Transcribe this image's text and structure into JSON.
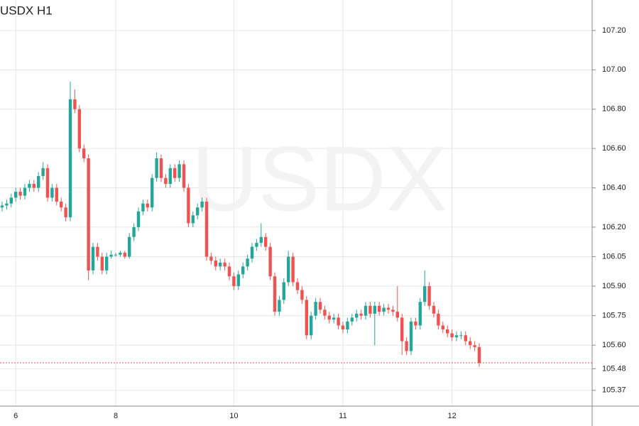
{
  "chart_data": {
    "type": "candlestick",
    "title": "USDX H1",
    "watermark": "USDX",
    "categories": [
      null,
      null,
      null,
      "6",
      null,
      null,
      null,
      null,
      null,
      null,
      null,
      null,
      null,
      null,
      null,
      null,
      null,
      null,
      null,
      null,
      null,
      null,
      null,
      null,
      null,
      "8",
      null,
      null,
      null,
      null,
      null,
      null,
      null,
      null,
      null,
      null,
      null,
      null,
      null,
      null,
      null,
      null,
      null,
      null,
      null,
      null,
      null,
      null,
      null,
      null,
      null,
      "10",
      null,
      null,
      null,
      null,
      null,
      null,
      null,
      null,
      null,
      null,
      null,
      null,
      null,
      null,
      null,
      null,
      null,
      null,
      null,
      null,
      null,
      null,
      null,
      "11",
      null,
      null,
      null,
      null,
      null,
      null,
      null,
      null,
      null,
      null,
      null,
      null,
      null,
      null,
      null,
      null,
      null,
      null,
      null,
      null,
      null,
      null,
      null,
      "12",
      null,
      null,
      null,
      null,
      null,
      null
    ],
    "open": [
      106.3,
      106.31,
      106.32,
      106.35,
      106.38,
      106.36,
      106.4,
      106.42,
      106.4,
      106.46,
      106.5,
      106.35,
      106.4,
      106.33,
      106.3,
      106.25,
      106.85,
      106.8,
      106.6,
      106.55,
      105.98,
      106.1,
      106.05,
      105.98,
      106.05,
      106.06,
      106.06,
      106.07,
      106.05,
      106.15,
      106.2,
      106.28,
      106.32,
      106.3,
      106.45,
      106.55,
      106.45,
      106.42,
      106.5,
      106.45,
      106.52,
      106.4,
      106.22,
      106.26,
      106.3,
      106.33,
      106.05,
      106.03,
      106.0,
      106.02,
      106.0,
      105.95,
      105.9,
      105.96,
      106.0,
      106.04,
      106.1,
      106.12,
      106.15,
      106.1,
      105.95,
      105.77,
      105.83,
      105.92,
      106.05,
      105.92,
      105.88,
      105.83,
      105.65,
      105.75,
      105.82,
      105.78,
      105.75,
      105.73,
      105.74,
      105.7,
      105.68,
      105.72,
      105.74,
      105.76,
      105.75,
      105.8,
      105.76,
      105.8,
      105.77,
      105.79,
      105.78,
      105.77,
      105.74,
      105.62,
      105.57,
      105.72,
      105.7,
      105.82,
      105.9,
      105.8,
      105.76,
      105.7,
      105.68,
      105.66,
      105.64,
      105.65,
      105.65,
      105.62,
      105.6,
      105.59
    ],
    "high": [
      106.33,
      106.34,
      106.37,
      106.4,
      106.4,
      106.42,
      106.44,
      106.44,
      106.48,
      106.53,
      106.52,
      106.42,
      106.42,
      106.35,
      106.32,
      106.94,
      106.9,
      106.82,
      106.62,
      106.57,
      106.12,
      106.12,
      106.07,
      106.07,
      106.08,
      106.07,
      106.08,
      106.08,
      106.17,
      106.22,
      106.3,
      106.34,
      106.34,
      106.47,
      106.58,
      106.57,
      106.47,
      106.52,
      106.52,
      106.54,
      106.54,
      106.42,
      106.28,
      106.32,
      106.35,
      106.35,
      106.07,
      106.05,
      106.04,
      106.04,
      106.02,
      105.97,
      105.98,
      106.02,
      106.06,
      106.12,
      106.14,
      106.22,
      106.17,
      106.12,
      105.97,
      105.85,
      105.94,
      106.08,
      106.07,
      105.94,
      105.9,
      105.85,
      105.77,
      105.84,
      105.84,
      105.8,
      105.77,
      105.76,
      105.76,
      105.72,
      105.74,
      105.76,
      105.78,
      105.78,
      105.82,
      105.82,
      105.82,
      105.82,
      105.81,
      105.81,
      105.8,
      105.9,
      105.76,
      105.64,
      105.74,
      105.74,
      105.84,
      105.98,
      105.92,
      105.82,
      105.78,
      105.72,
      105.7,
      105.68,
      105.67,
      105.67,
      105.67,
      105.64,
      105.62,
      105.61
    ],
    "low": [
      106.28,
      106.29,
      106.3,
      106.33,
      106.34,
      106.34,
      106.38,
      106.38,
      106.38,
      106.44,
      106.33,
      106.33,
      106.31,
      106.28,
      106.23,
      106.23,
      106.78,
      106.58,
      106.53,
      105.93,
      105.96,
      106.03,
      105.96,
      105.96,
      106.04,
      106.05,
      106.05,
      106.04,
      106.04,
      106.13,
      106.18,
      106.26,
      106.28,
      106.28,
      106.43,
      106.43,
      106.4,
      106.4,
      106.43,
      106.43,
      106.38,
      106.2,
      106.2,
      106.24,
      106.28,
      106.03,
      106.01,
      105.98,
      105.98,
      105.98,
      105.93,
      105.88,
      105.88,
      105.94,
      105.98,
      106.02,
      106.08,
      106.1,
      106.08,
      105.93,
      105.75,
      105.75,
      105.81,
      105.9,
      105.9,
      105.86,
      105.81,
      105.63,
      105.63,
      105.73,
      105.76,
      105.73,
      105.71,
      105.71,
      105.68,
      105.66,
      105.66,
      105.7,
      105.72,
      105.73,
      105.73,
      105.74,
      105.6,
      105.75,
      105.75,
      105.76,
      105.75,
      105.72,
      105.55,
      105.55,
      105.55,
      105.68,
      105.68,
      105.8,
      105.78,
      105.74,
      105.68,
      105.66,
      105.64,
      105.62,
      105.62,
      105.63,
      105.6,
      105.58,
      105.57,
      105.49
    ],
    "close": [
      106.31,
      106.32,
      106.35,
      106.38,
      106.36,
      106.4,
      106.42,
      106.4,
      106.46,
      106.5,
      106.35,
      106.4,
      106.33,
      106.3,
      106.25,
      106.85,
      106.8,
      106.6,
      106.55,
      105.98,
      106.1,
      106.05,
      105.98,
      106.05,
      106.06,
      106.06,
      106.07,
      106.05,
      106.15,
      106.2,
      106.28,
      106.32,
      106.3,
      106.45,
      106.55,
      106.45,
      106.42,
      106.5,
      106.45,
      106.52,
      106.4,
      106.22,
      106.26,
      106.3,
      106.33,
      106.05,
      106.03,
      106.0,
      106.02,
      106.0,
      105.95,
      105.9,
      105.96,
      106.0,
      106.04,
      106.1,
      106.12,
      106.15,
      106.1,
      105.95,
      105.77,
      105.83,
      105.92,
      106.05,
      105.92,
      105.88,
      105.83,
      105.65,
      105.75,
      105.82,
      105.78,
      105.75,
      105.73,
      105.74,
      105.7,
      105.68,
      105.72,
      105.74,
      105.76,
      105.75,
      105.8,
      105.76,
      105.8,
      105.77,
      105.79,
      105.78,
      105.77,
      105.74,
      105.62,
      105.57,
      105.72,
      105.7,
      105.82,
      105.9,
      105.8,
      105.76,
      105.7,
      105.68,
      105.66,
      105.64,
      105.65,
      105.65,
      105.62,
      105.6,
      105.59,
      105.51
    ],
    "up_color": "#26a69a",
    "down_color": "#ef5350",
    "ylim": [
      105.29,
      107.355
    ],
    "yticks": [
      {
        "value": 107.2,
        "label": "107.20"
      },
      {
        "value": 107,
        "label": "107.00"
      },
      {
        "value": 106.8,
        "label": "106.80"
      },
      {
        "value": 106.6,
        "label": "106.60"
      },
      {
        "value": 106.4,
        "label": "106.40"
      },
      {
        "value": 106.2,
        "label": "106.20"
      },
      {
        "value": 106.05,
        "label": "106.05"
      },
      {
        "value": 105.9,
        "label": "105.90"
      },
      {
        "value": 105.75,
        "label": "105.75"
      },
      {
        "value": 105.6,
        "label": "105.60"
      },
      {
        "value": 105.48,
        "label": "105.48"
      },
      {
        "value": 105.37,
        "label": "105.37"
      }
    ],
    "grid": true,
    "last_price_line": true
  }
}
